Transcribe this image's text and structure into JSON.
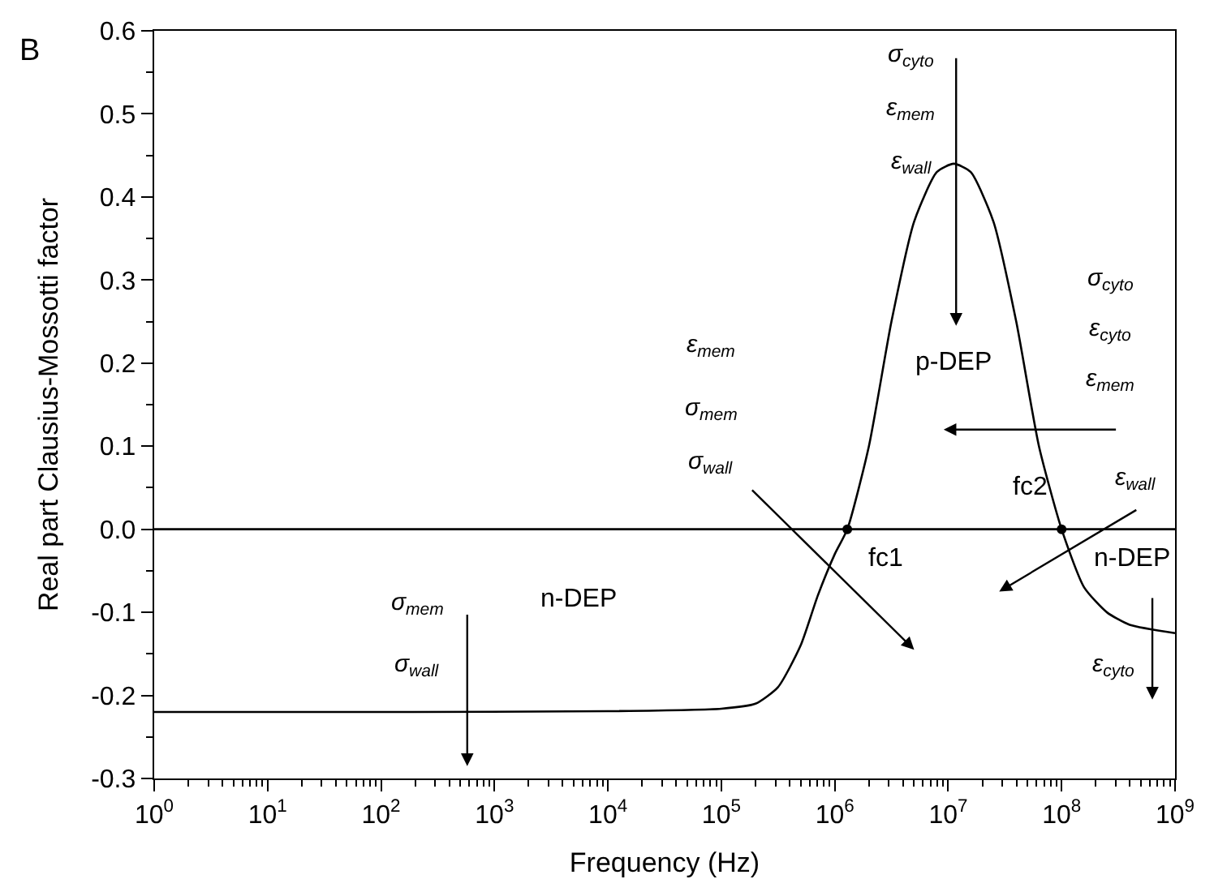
{
  "chart_data": {
    "type": "line",
    "xlabel": "Frequency (Hz)",
    "ylabel": "Real part Clausius-Mossotti factor",
    "log": "x",
    "xlim": [
      1,
      1000000000
    ],
    "ylim": [
      -0.3,
      0.6
    ],
    "xticks": [
      {
        "value": 1,
        "label": "10$^{0}$"
      },
      {
        "value": 10,
        "label": "10$^{1}$"
      },
      {
        "value": 100,
        "label": "10$^{2}$"
      },
      {
        "value": 1000,
        "label": "10$^{3}$"
      },
      {
        "value": 10000,
        "label": "10$^{4}$"
      },
      {
        "value": 100000,
        "label": "10$^{5}$"
      },
      {
        "value": 1000000,
        "label": "10$^{6}$"
      },
      {
        "value": 10000000,
        "label": "10$^{7}$"
      },
      {
        "value": 100000000,
        "label": "10$^{8}$"
      },
      {
        "value": 1000000000,
        "label": "10$^{9}$"
      }
    ],
    "yticks": [
      {
        "value": -0.3,
        "label": "-0.3"
      },
      {
        "value": -0.2,
        "label": "-0.2"
      },
      {
        "value": -0.1,
        "label": "-0.1"
      },
      {
        "value": 0,
        "label": "0.0"
      },
      {
        "value": 0.1,
        "label": "0.1"
      },
      {
        "value": 0.2,
        "label": "0.2"
      },
      {
        "value": 0.3,
        "label": "0.3"
      },
      {
        "value": 0.4,
        "label": "0.4"
      },
      {
        "value": 0.5,
        "label": "0.5"
      },
      {
        "value": 0.6,
        "label": "0.6"
      }
    ],
    "ref_lines": [
      {
        "axis": "y",
        "value": 0,
        "color": "#000000",
        "line_style": "solid"
      }
    ],
    "series": [
      {
        "color": "#000000",
        "marker": "none",
        "x": [
          1,
          100,
          10000,
          100000,
          200000,
          316000,
          500000,
          708000,
          1000000,
          1290000,
          2000000,
          3160000,
          5000000,
          7940000,
          11200000,
          15800000,
          25100000,
          39800000,
          63100000,
          100000000,
          158000000,
          251000000,
          398000000,
          1000000000
        ],
        "values": [
          -0.22,
          -0.22,
          -0.219,
          -0.216,
          -0.21,
          -0.19,
          -0.14,
          -0.08,
          -0.03,
          0.0,
          0.1,
          0.25,
          0.37,
          0.43,
          0.44,
          0.43,
          0.37,
          0.25,
          0.1,
          0.0,
          -0.07,
          -0.1,
          -0.115,
          -0.125
        ]
      },
      {
        "type": "scatter",
        "color": "#000000",
        "marker": "circle",
        "x": [
          1290000,
          100000000
        ],
        "values": [
          0,
          0
        ]
      }
    ],
    "annotations": [
      "B",
      "σ$_{cyto}$",
      "ε$_{mem}$",
      "ε$_{wall}$",
      "p-DEP",
      "σ$_{cyto}$",
      "ε$_{cyto}$",
      "ε$_{mem}$",
      "ε$_{wall}$",
      "fc2",
      "fc1",
      "n-DEP",
      "ε$_{cyto}$",
      "ε$_{mem}$",
      "σ$_{mem}$",
      "σ$_{wall}$",
      "n-DEP",
      "σ$_{mem}$",
      "σ$_{wall}$"
    ]
  }
}
